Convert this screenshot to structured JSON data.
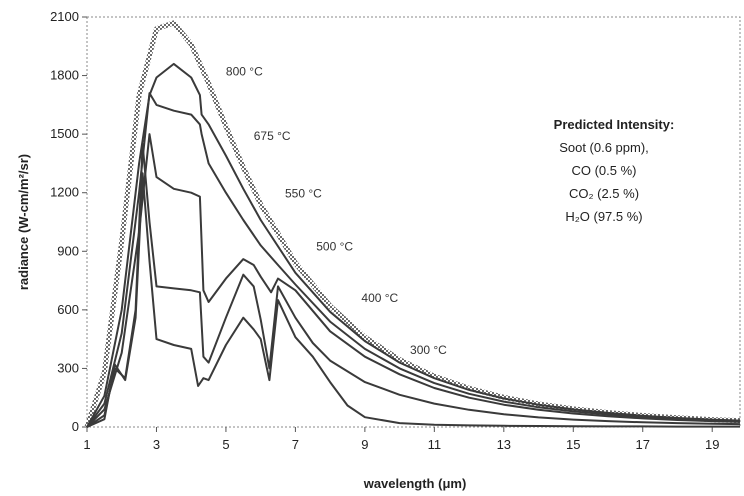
{
  "chart_data": {
    "type": "line",
    "xlabel": "wavelength (μm)",
    "ylabel": "radiance (W-cm/m²/sr)",
    "xlim": [
      1,
      19.8
    ],
    "ylim": [
      0,
      2100
    ],
    "x_ticks": [
      "1",
      "3",
      "5",
      "7",
      "9",
      "11",
      "13",
      "15",
      "17",
      "19"
    ],
    "y_ticks": [
      "0",
      "300",
      "600",
      "900",
      "1200",
      "1500",
      "1800",
      "2100"
    ],
    "grid": false,
    "legend": {
      "title": "Predicted Intensity:",
      "lines": [
        "Soot (0.6 ppm),",
        "CO (0.5 %)",
        "CO₂ (2.5 %)",
        "H₂O (97.5 %)"
      ]
    },
    "series": [
      {
        "name": "800 °C",
        "x": [
          1,
          1.5,
          2,
          2.5,
          3,
          3.5,
          4,
          4.5,
          5,
          5.5,
          6,
          7,
          8,
          9,
          10,
          11,
          12,
          13,
          14,
          15,
          16,
          17,
          18,
          19,
          19.8
        ],
        "y": [
          0,
          280,
          950,
          1700,
          2040,
          2070,
          1960,
          1760,
          1540,
          1330,
          1140,
          840,
          620,
          460,
          345,
          260,
          198,
          152,
          118,
          93,
          74,
          59,
          47,
          38,
          33
        ]
      },
      {
        "name": "675 °C",
        "x": [
          1,
          1.5,
          2,
          2.5,
          2.8,
          3,
          3.5,
          4,
          4.25,
          4.3,
          4.5,
          5,
          5.5,
          6,
          7,
          8,
          9,
          10,
          11,
          12,
          13,
          14,
          15,
          16,
          17,
          18,
          19,
          19.8
        ],
        "y": [
          0,
          160,
          600,
          1350,
          1700,
          1790,
          1860,
          1790,
          1700,
          1600,
          1550,
          1390,
          1220,
          1060,
          790,
          590,
          440,
          330,
          250,
          190,
          146,
          114,
          90,
          72,
          58,
          46,
          38,
          33
        ]
      },
      {
        "name": "550 °C",
        "x": [
          1,
          1.5,
          2,
          2.5,
          2.8,
          3,
          3.5,
          4,
          4.25,
          4.3,
          4.5,
          5,
          5.5,
          6,
          6.5,
          7,
          8,
          9,
          10,
          11,
          12,
          13,
          14,
          15,
          16,
          17,
          18,
          19,
          19.8
        ],
        "y": [
          0,
          120,
          480,
          1200,
          1710,
          1650,
          1620,
          1600,
          1550,
          1500,
          1350,
          1200,
          1060,
          930,
          830,
          730,
          540,
          400,
          300,
          225,
          170,
          130,
          101,
          80,
          64,
          51,
          41,
          34,
          30
        ]
      },
      {
        "name": "500 °C",
        "x": [
          1,
          1.5,
          2,
          2.5,
          2.8,
          3,
          3.5,
          4,
          4.25,
          4.35,
          4.5,
          5,
          5.5,
          5.8,
          6,
          6.3,
          6.5,
          7,
          8,
          9,
          10,
          11,
          12,
          13,
          14,
          15,
          16,
          17,
          18,
          19,
          19.8
        ],
        "y": [
          0,
          90,
          380,
          1000,
          1500,
          1280,
          1220,
          1200,
          1180,
          700,
          640,
          760,
          860,
          830,
          770,
          690,
          760,
          700,
          490,
          360,
          270,
          200,
          150,
          114,
          88,
          69,
          55,
          44,
          36,
          30,
          26
        ]
      },
      {
        "name": "400 °C",
        "x": [
          1,
          1.5,
          1.8,
          2.1,
          2.4,
          2.6,
          2.8,
          3,
          3.5,
          4,
          4.25,
          4.35,
          4.5,
          5,
          5.5,
          5.8,
          6,
          6.25,
          6.5,
          7,
          7.5,
          8,
          9,
          10,
          11,
          12,
          13,
          14,
          15,
          16,
          17,
          18,
          19,
          19.8
        ],
        "y": [
          0,
          60,
          300,
          250,
          600,
          1450,
          1050,
          720,
          710,
          700,
          690,
          360,
          330,
          560,
          780,
          720,
          550,
          300,
          720,
          560,
          430,
          340,
          230,
          165,
          120,
          88,
          65,
          49,
          38,
          30,
          24,
          20,
          17,
          15
        ]
      },
      {
        "name": "300 °C",
        "x": [
          1,
          1.5,
          1.8,
          2.1,
          2.4,
          2.6,
          2.8,
          3,
          3.5,
          4,
          4.2,
          4.35,
          4.5,
          5,
          5.5,
          5.8,
          6,
          6.25,
          6.5,
          7,
          7.5,
          8,
          8.5,
          9,
          10,
          11,
          12,
          13,
          14,
          15,
          16,
          17,
          18,
          19,
          19.8
        ],
        "y": [
          0,
          40,
          320,
          240,
          560,
          1300,
          850,
          450,
          420,
          400,
          210,
          250,
          240,
          420,
          560,
          500,
          450,
          240,
          650,
          460,
          360,
          230,
          110,
          50,
          20,
          12,
          8,
          6,
          5,
          4,
          3,
          3,
          2,
          2,
          2
        ]
      }
    ],
    "curve_labels": [
      {
        "text": "800 °C",
        "x": 5.0,
        "y": 1800
      },
      {
        "text": "675 °C",
        "x": 5.8,
        "y": 1470
      },
      {
        "text": "550 °C",
        "x": 6.7,
        "y": 1175
      },
      {
        "text": "500 °C",
        "x": 7.6,
        "y": 905
      },
      {
        "text": "400 °C",
        "x": 8.9,
        "y": 640
      },
      {
        "text": "300 °C",
        "x": 10.3,
        "y": 375
      }
    ]
  }
}
